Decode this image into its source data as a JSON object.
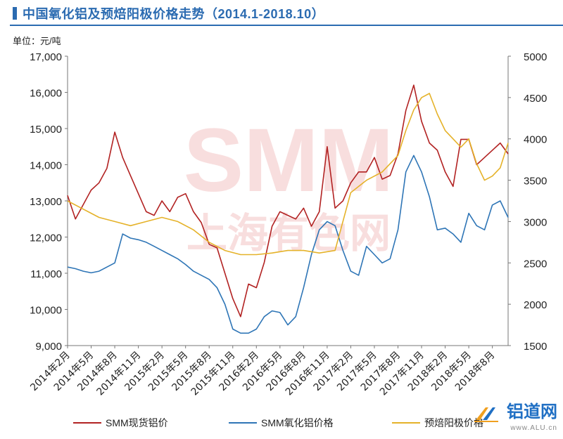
{
  "title": "中国氧化铝及预焙阳极价格走势（2014.1-2018.10）",
  "unit_label": "单位：元/吨",
  "watermark": {
    "text1": "SMM",
    "text2": "上海有色网"
  },
  "brand": {
    "name": "铝道网",
    "url": "www.ALU.cn"
  },
  "colors": {
    "smm_al": "#b22222",
    "alumina": "#2e75b6",
    "anode": "#e5b229",
    "title": "#2b6bb1"
  },
  "chart_data": {
    "type": "line",
    "title": "中国氧化铝及预焙阳极价格走势（2014.1-2018.10）",
    "x_ticks": [
      "2014年2月",
      "2014年5月",
      "2014年8月",
      "2014年11月",
      "2015年2月",
      "2015年5月",
      "2015年8月",
      "2015年11月",
      "2016年2月",
      "2016年5月",
      "2016年8月",
      "2016年11月",
      "2017年2月",
      "2017年5月",
      "2017年8月",
      "2017年11月",
      "2018年2月",
      "2018年5月",
      "2018年8月"
    ],
    "x_range": [
      "2014-02",
      "2018-10"
    ],
    "left_axis": {
      "unit": "元/吨",
      "ylim": [
        9000,
        17000
      ],
      "ticks": [
        "9,000",
        "10,000",
        "11,000",
        "12,000",
        "13,000",
        "14,000",
        "15,000",
        "16,000",
        "17,000"
      ]
    },
    "right_axis": {
      "ylim": [
        1500,
        5000
      ],
      "ticks": [
        "1500",
        "2000",
        "2500",
        "3000",
        "3500",
        "4000",
        "4500",
        "5000"
      ]
    },
    "series": [
      {
        "name": "SMM现货铝价",
        "axis": "left",
        "x": [
          "2014-02",
          "2014-03",
          "2014-04",
          "2014-05",
          "2014-06",
          "2014-07",
          "2014-08",
          "2014-09",
          "2014-10",
          "2014-11",
          "2014-12",
          "2015-01",
          "2015-02",
          "2015-03",
          "2015-04",
          "2015-05",
          "2015-06",
          "2015-07",
          "2015-08",
          "2015-09",
          "2015-10",
          "2015-11",
          "2015-12",
          "2016-01",
          "2016-02",
          "2016-03",
          "2016-04",
          "2016-05",
          "2016-06",
          "2016-07",
          "2016-08",
          "2016-09",
          "2016-10",
          "2016-11",
          "2016-12",
          "2017-01",
          "2017-02",
          "2017-03",
          "2017-04",
          "2017-05",
          "2017-06",
          "2017-07",
          "2017-08",
          "2017-09",
          "2017-10",
          "2017-11",
          "2017-12",
          "2018-01",
          "2018-02",
          "2018-03",
          "2018-04",
          "2018-05",
          "2018-06",
          "2018-07",
          "2018-08",
          "2018-09",
          "2018-10"
        ],
        "values": [
          13150,
          12500,
          12900,
          13300,
          13500,
          13900,
          14900,
          14200,
          13700,
          13200,
          12700,
          12600,
          13000,
          12700,
          13100,
          13200,
          12700,
          12400,
          11800,
          11700,
          11000,
          10300,
          9800,
          10700,
          10600,
          11300,
          12300,
          12700,
          12600,
          12500,
          12800,
          12300,
          12700,
          14500,
          12800,
          13000,
          13500,
          13800,
          13800,
          14200,
          13600,
          13700,
          14300,
          15500,
          16200,
          15200,
          14600,
          14400,
          13800,
          13400,
          14700,
          14700,
          14000,
          14200,
          14400,
          14600,
          14300
        ]
      },
      {
        "name": "SMM氧化铝价格",
        "axis": "right",
        "x": [
          "2014-02",
          "2014-03",
          "2014-04",
          "2014-05",
          "2014-06",
          "2014-07",
          "2014-08",
          "2014-09",
          "2014-10",
          "2014-11",
          "2014-12",
          "2015-01",
          "2015-02",
          "2015-03",
          "2015-04",
          "2015-05",
          "2015-06",
          "2015-07",
          "2015-08",
          "2015-09",
          "2015-10",
          "2015-11",
          "2015-12",
          "2016-01",
          "2016-02",
          "2016-03",
          "2016-04",
          "2016-05",
          "2016-06",
          "2016-07",
          "2016-08",
          "2016-09",
          "2016-10",
          "2016-11",
          "2016-12",
          "2017-01",
          "2017-02",
          "2017-03",
          "2017-04",
          "2017-05",
          "2017-06",
          "2017-07",
          "2017-08",
          "2017-09",
          "2017-10",
          "2017-11",
          "2017-12",
          "2018-01",
          "2018-02",
          "2018-03",
          "2018-04",
          "2018-05",
          "2018-06",
          "2018-07",
          "2018-08",
          "2018-09",
          "2018-10"
        ],
        "values": [
          2450,
          2430,
          2400,
          2380,
          2400,
          2450,
          2500,
          2850,
          2800,
          2780,
          2750,
          2700,
          2650,
          2600,
          2550,
          2480,
          2400,
          2350,
          2300,
          2200,
          2000,
          1700,
          1650,
          1650,
          1700,
          1850,
          1920,
          1900,
          1750,
          1850,
          2200,
          2600,
          2900,
          3000,
          2950,
          2650,
          2400,
          2350,
          2700,
          2600,
          2500,
          2550,
          2900,
          3600,
          3800,
          3600,
          3300,
          2900,
          2920,
          2850,
          2750,
          3100,
          2950,
          2900,
          3200,
          3250,
          3050
        ]
      },
      {
        "name": "预焙阳极价格",
        "axis": "right",
        "x": [
          "2014-02",
          "2014-04",
          "2014-06",
          "2014-08",
          "2014-10",
          "2014-12",
          "2015-02",
          "2015-04",
          "2015-06",
          "2015-08",
          "2015-10",
          "2015-12",
          "2016-02",
          "2016-04",
          "2016-06",
          "2016-08",
          "2016-10",
          "2016-12",
          "2017-02",
          "2017-04",
          "2017-06",
          "2017-08",
          "2017-09",
          "2017-10",
          "2017-11",
          "2017-12",
          "2018-01",
          "2018-02",
          "2018-03",
          "2018-04",
          "2018-05",
          "2018-06",
          "2018-07",
          "2018-08",
          "2018-09",
          "2018-10"
        ],
        "values": [
          3250,
          3150,
          3050,
          3000,
          2950,
          3000,
          3050,
          3000,
          2900,
          2750,
          2650,
          2600,
          2600,
          2620,
          2650,
          2650,
          2620,
          2650,
          3350,
          3500,
          3600,
          3800,
          4100,
          4350,
          4500,
          4550,
          4300,
          4100,
          4000,
          3900,
          4000,
          3700,
          3500,
          3550,
          3650,
          3950
        ]
      }
    ]
  },
  "legend": {
    "items": [
      "SMM现货铝价",
      "SMM氧化铝价格",
      "预焙阳极价格"
    ]
  }
}
